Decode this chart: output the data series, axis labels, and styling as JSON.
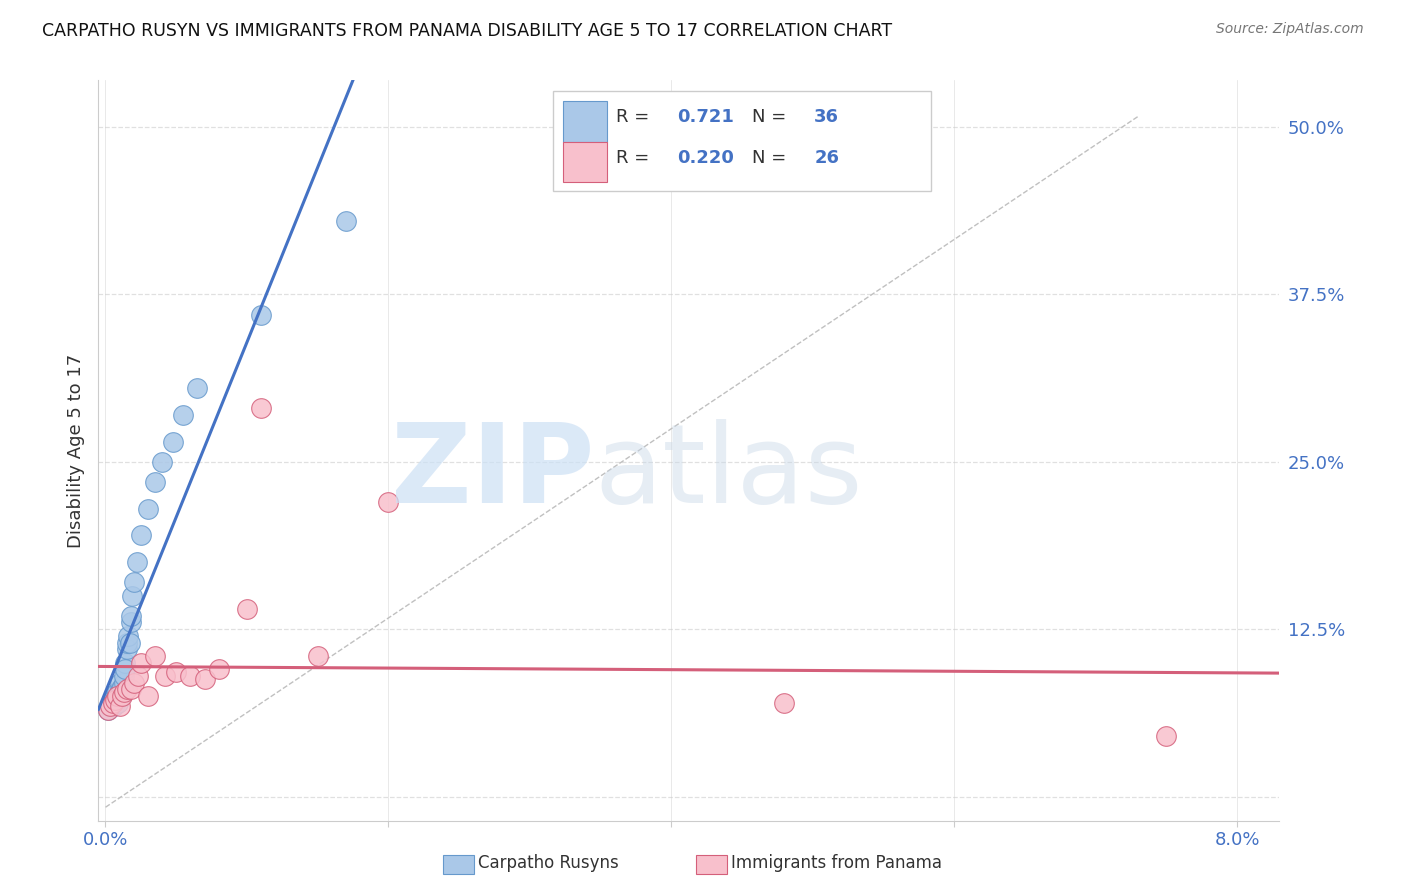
{
  "title": "CARPATHO RUSYN VS IMMIGRANTS FROM PANAMA DISABILITY AGE 5 TO 17 CORRELATION CHART",
  "source": "Source: ZipAtlas.com",
  "ylabel": "Disability Age 5 to 17",
  "ytick_labels": [
    "",
    "12.5%",
    "25.0%",
    "37.5%",
    "50.0%"
  ],
  "ytick_values": [
    0.0,
    0.125,
    0.25,
    0.375,
    0.5
  ],
  "xmin": -0.0005,
  "xmax": 0.083,
  "ymin": -0.018,
  "ymax": 0.535,
  "blue_R": 0.721,
  "blue_N": 36,
  "pink_R": 0.22,
  "pink_N": 26,
  "blue_scatter_x": [
    0.0002,
    0.0003,
    0.0005,
    0.0005,
    0.0006,
    0.0007,
    0.0008,
    0.0008,
    0.0009,
    0.001,
    0.001,
    0.0011,
    0.0011,
    0.0012,
    0.0013,
    0.0013,
    0.0014,
    0.0014,
    0.0015,
    0.0015,
    0.0016,
    0.0017,
    0.0018,
    0.0018,
    0.0019,
    0.002,
    0.0022,
    0.0025,
    0.003,
    0.0035,
    0.004,
    0.0048,
    0.0055,
    0.0065,
    0.011,
    0.017
  ],
  "blue_scatter_y": [
    0.065,
    0.068,
    0.07,
    0.072,
    0.068,
    0.073,
    0.075,
    0.078,
    0.07,
    0.08,
    0.085,
    0.075,
    0.08,
    0.082,
    0.085,
    0.09,
    0.1,
    0.095,
    0.11,
    0.115,
    0.12,
    0.115,
    0.13,
    0.135,
    0.15,
    0.16,
    0.175,
    0.195,
    0.215,
    0.235,
    0.25,
    0.265,
    0.285,
    0.305,
    0.36,
    0.43
  ],
  "pink_scatter_x": [
    0.0002,
    0.0003,
    0.0005,
    0.0007,
    0.0008,
    0.001,
    0.0012,
    0.0013,
    0.0015,
    0.0018,
    0.002,
    0.0023,
    0.0025,
    0.003,
    0.0035,
    0.0042,
    0.005,
    0.006,
    0.007,
    0.008,
    0.01,
    0.011,
    0.015,
    0.02,
    0.048,
    0.075
  ],
  "pink_scatter_y": [
    0.065,
    0.068,
    0.07,
    0.072,
    0.075,
    0.068,
    0.075,
    0.078,
    0.08,
    0.08,
    0.085,
    0.09,
    0.1,
    0.075,
    0.105,
    0.09,
    0.093,
    0.09,
    0.088,
    0.095,
    0.14,
    0.29,
    0.105,
    0.22,
    0.07,
    0.045
  ],
  "blue_color": "#aac8e8",
  "blue_line_color": "#4472c4",
  "blue_edge_color": "#6699cc",
  "pink_color": "#f8c0cc",
  "pink_line_color": "#d45f7a",
  "pink_edge_color": "#d45f7a",
  "ref_line_color": "#c0c0c0",
  "grid_color": "#e0e0e0",
  "axis_color": "#cccccc",
  "label_color": "#4472c4",
  "text_color": "#333333",
  "legend_label_blue": "Carpatho Rusyns",
  "legend_label_pink": "Immigrants from Panama"
}
